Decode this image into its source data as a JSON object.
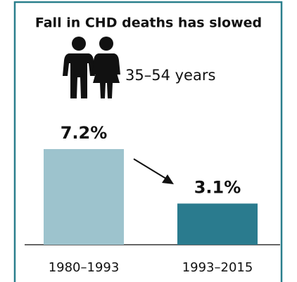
{
  "chart_data": {
    "type": "bar",
    "title": "Fall in CHD deaths has slowed",
    "subtitle": "35–54 years",
    "categories": [
      "1980–1993",
      "1993–2015"
    ],
    "values": [
      7.2,
      3.1
    ],
    "value_labels": [
      "7.2%",
      "3.1%"
    ],
    "colors": [
      "#9dc3cd",
      "#2a7b8e"
    ],
    "border_color": "#2a7f8c"
  }
}
